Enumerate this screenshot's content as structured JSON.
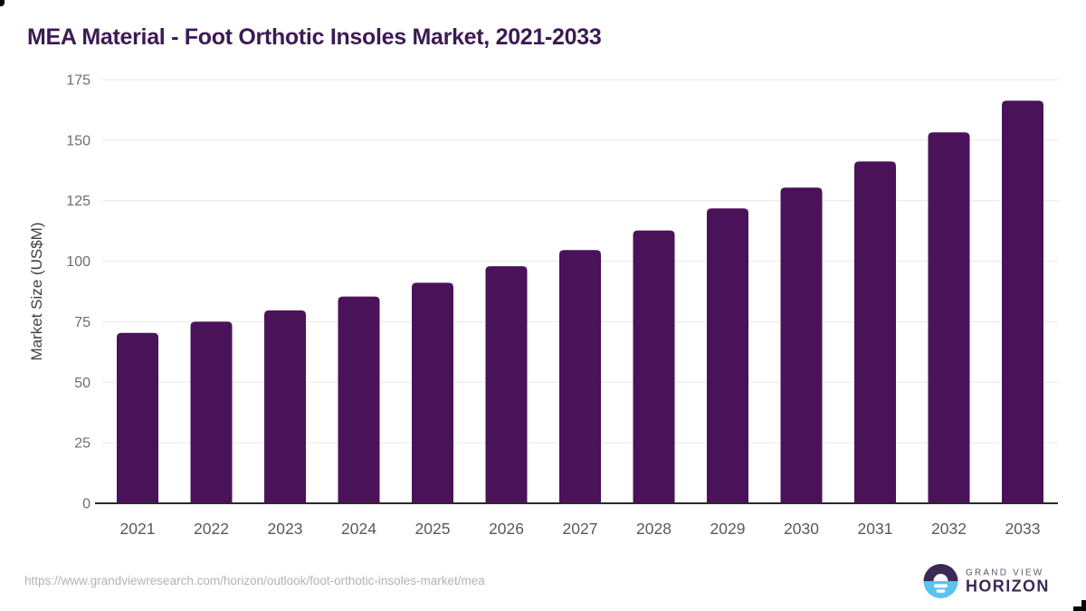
{
  "header": {
    "title": "MEA Material - Foot Orthotic Insoles Market, 2021-2033"
  },
  "chart_data": {
    "type": "bar",
    "title": "MEA Material - Foot Orthotic Insoles Market, 2021-2033",
    "categories": [
      "2021",
      "2022",
      "2023",
      "2024",
      "2025",
      "2026",
      "2027",
      "2028",
      "2029",
      "2030",
      "2031",
      "2032",
      "2033"
    ],
    "values": [
      70.4,
      75.0,
      79.7,
      85.4,
      91.1,
      97.9,
      104.6,
      112.7,
      121.8,
      130.4,
      141.2,
      153.2,
      166.3
    ],
    "series_name": "Market Size",
    "xlabel": "",
    "ylabel": "Market Size (US$M)",
    "ylim": [
      0,
      175
    ],
    "yticks": [
      0,
      25,
      50,
      75,
      100,
      125,
      150,
      175
    ],
    "grid": true,
    "legend": false,
    "bar_color": "#4a1259"
  },
  "footer": {
    "source_url": "https://www.grandviewresearch.com/horizon/outlook/foot-orthotic-insoles-market/mea",
    "logo": {
      "line1": "GRAND VIEW",
      "line2": "HORIZON"
    }
  },
  "colors": {
    "title": "#3c1a54",
    "bar": "#4a1259",
    "grid_line": "#e7e7e7",
    "axis_line": "#2b2b2b",
    "tick_label": "#6e6e6e",
    "x_label": "#595959",
    "axis_label": "#3f3f3f",
    "url_text": "#b3b3b3",
    "logo_dark": "#3b2a56",
    "logo_blue": "#5ac3ee",
    "logo_gray": "#5b566b",
    "logo_white": "#ffffff"
  }
}
